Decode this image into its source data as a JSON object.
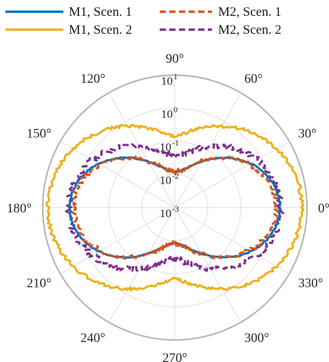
{
  "chart_data": {
    "type": "polar-line",
    "title": "",
    "r_scale": "log",
    "r_range": [
      0.001,
      10
    ],
    "r_ticks": [
      {
        "value": 0.001,
        "base": "10",
        "exp": "-3"
      },
      {
        "value": 0.01,
        "base": "10",
        "exp": "-2"
      },
      {
        "value": 0.1,
        "base": "10",
        "exp": "-1"
      },
      {
        "value": 1,
        "base": "10",
        "exp": "0"
      },
      {
        "value": 10,
        "base": "10",
        "exp": "1"
      }
    ],
    "theta_ticks_deg": [
      0,
      30,
      60,
      90,
      120,
      150,
      180,
      210,
      240,
      270,
      300,
      330
    ],
    "theta_tick_labels": [
      "0°",
      "30°",
      "60°",
      "90°",
      "120°",
      "150°",
      "180°",
      "210°",
      "240°",
      "270°",
      "300°",
      "330°"
    ],
    "grid": true,
    "legend_position": "top",
    "series": [
      {
        "name": "M1, Scen. 1",
        "color": "#0072BD",
        "style": "solid",
        "r_at_0": 1.5,
        "r_at_90": 0.012,
        "shape_exponent": 2.0,
        "noise": 0.02,
        "seed": 3
      },
      {
        "name": "M2, Scen. 1",
        "color": "#D95319",
        "style": "dashed",
        "r_at_0": 1.2,
        "r_at_90": 0.012,
        "shape_exponent": 1.9,
        "noise": 0.08,
        "seed": 11
      },
      {
        "name": "M1, Scen. 2",
        "color": "#EDB120",
        "style": "solid",
        "r_at_0": 7.0,
        "r_at_90": 0.14,
        "shape_exponent": 1.3,
        "noise": 0.05,
        "seed": 7
      },
      {
        "name": "M2, Scen. 2",
        "color": "#7E2F8E",
        "style": "dashed",
        "r_at_0": 1.6,
        "r_at_90": 0.035,
        "shape_exponent": 1.5,
        "noise": 0.1,
        "seed": 19
      }
    ],
    "plot_order": [
      "M1, Scen. 2",
      "M2, Scen. 2",
      "M1, Scen. 1",
      "M2, Scen. 1"
    ]
  },
  "legend": {
    "items": [
      {
        "label": "M1, Scen. 1",
        "color": "#0072BD",
        "style": "solid"
      },
      {
        "label": "M2, Scen. 1",
        "color": "#D95319",
        "style": "dashed"
      },
      {
        "label": "M1, Scen. 2",
        "color": "#EDB120",
        "style": "solid"
      },
      {
        "label": "M2, Scen. 2",
        "color": "#7E2F8E",
        "style": "dashed"
      }
    ]
  }
}
